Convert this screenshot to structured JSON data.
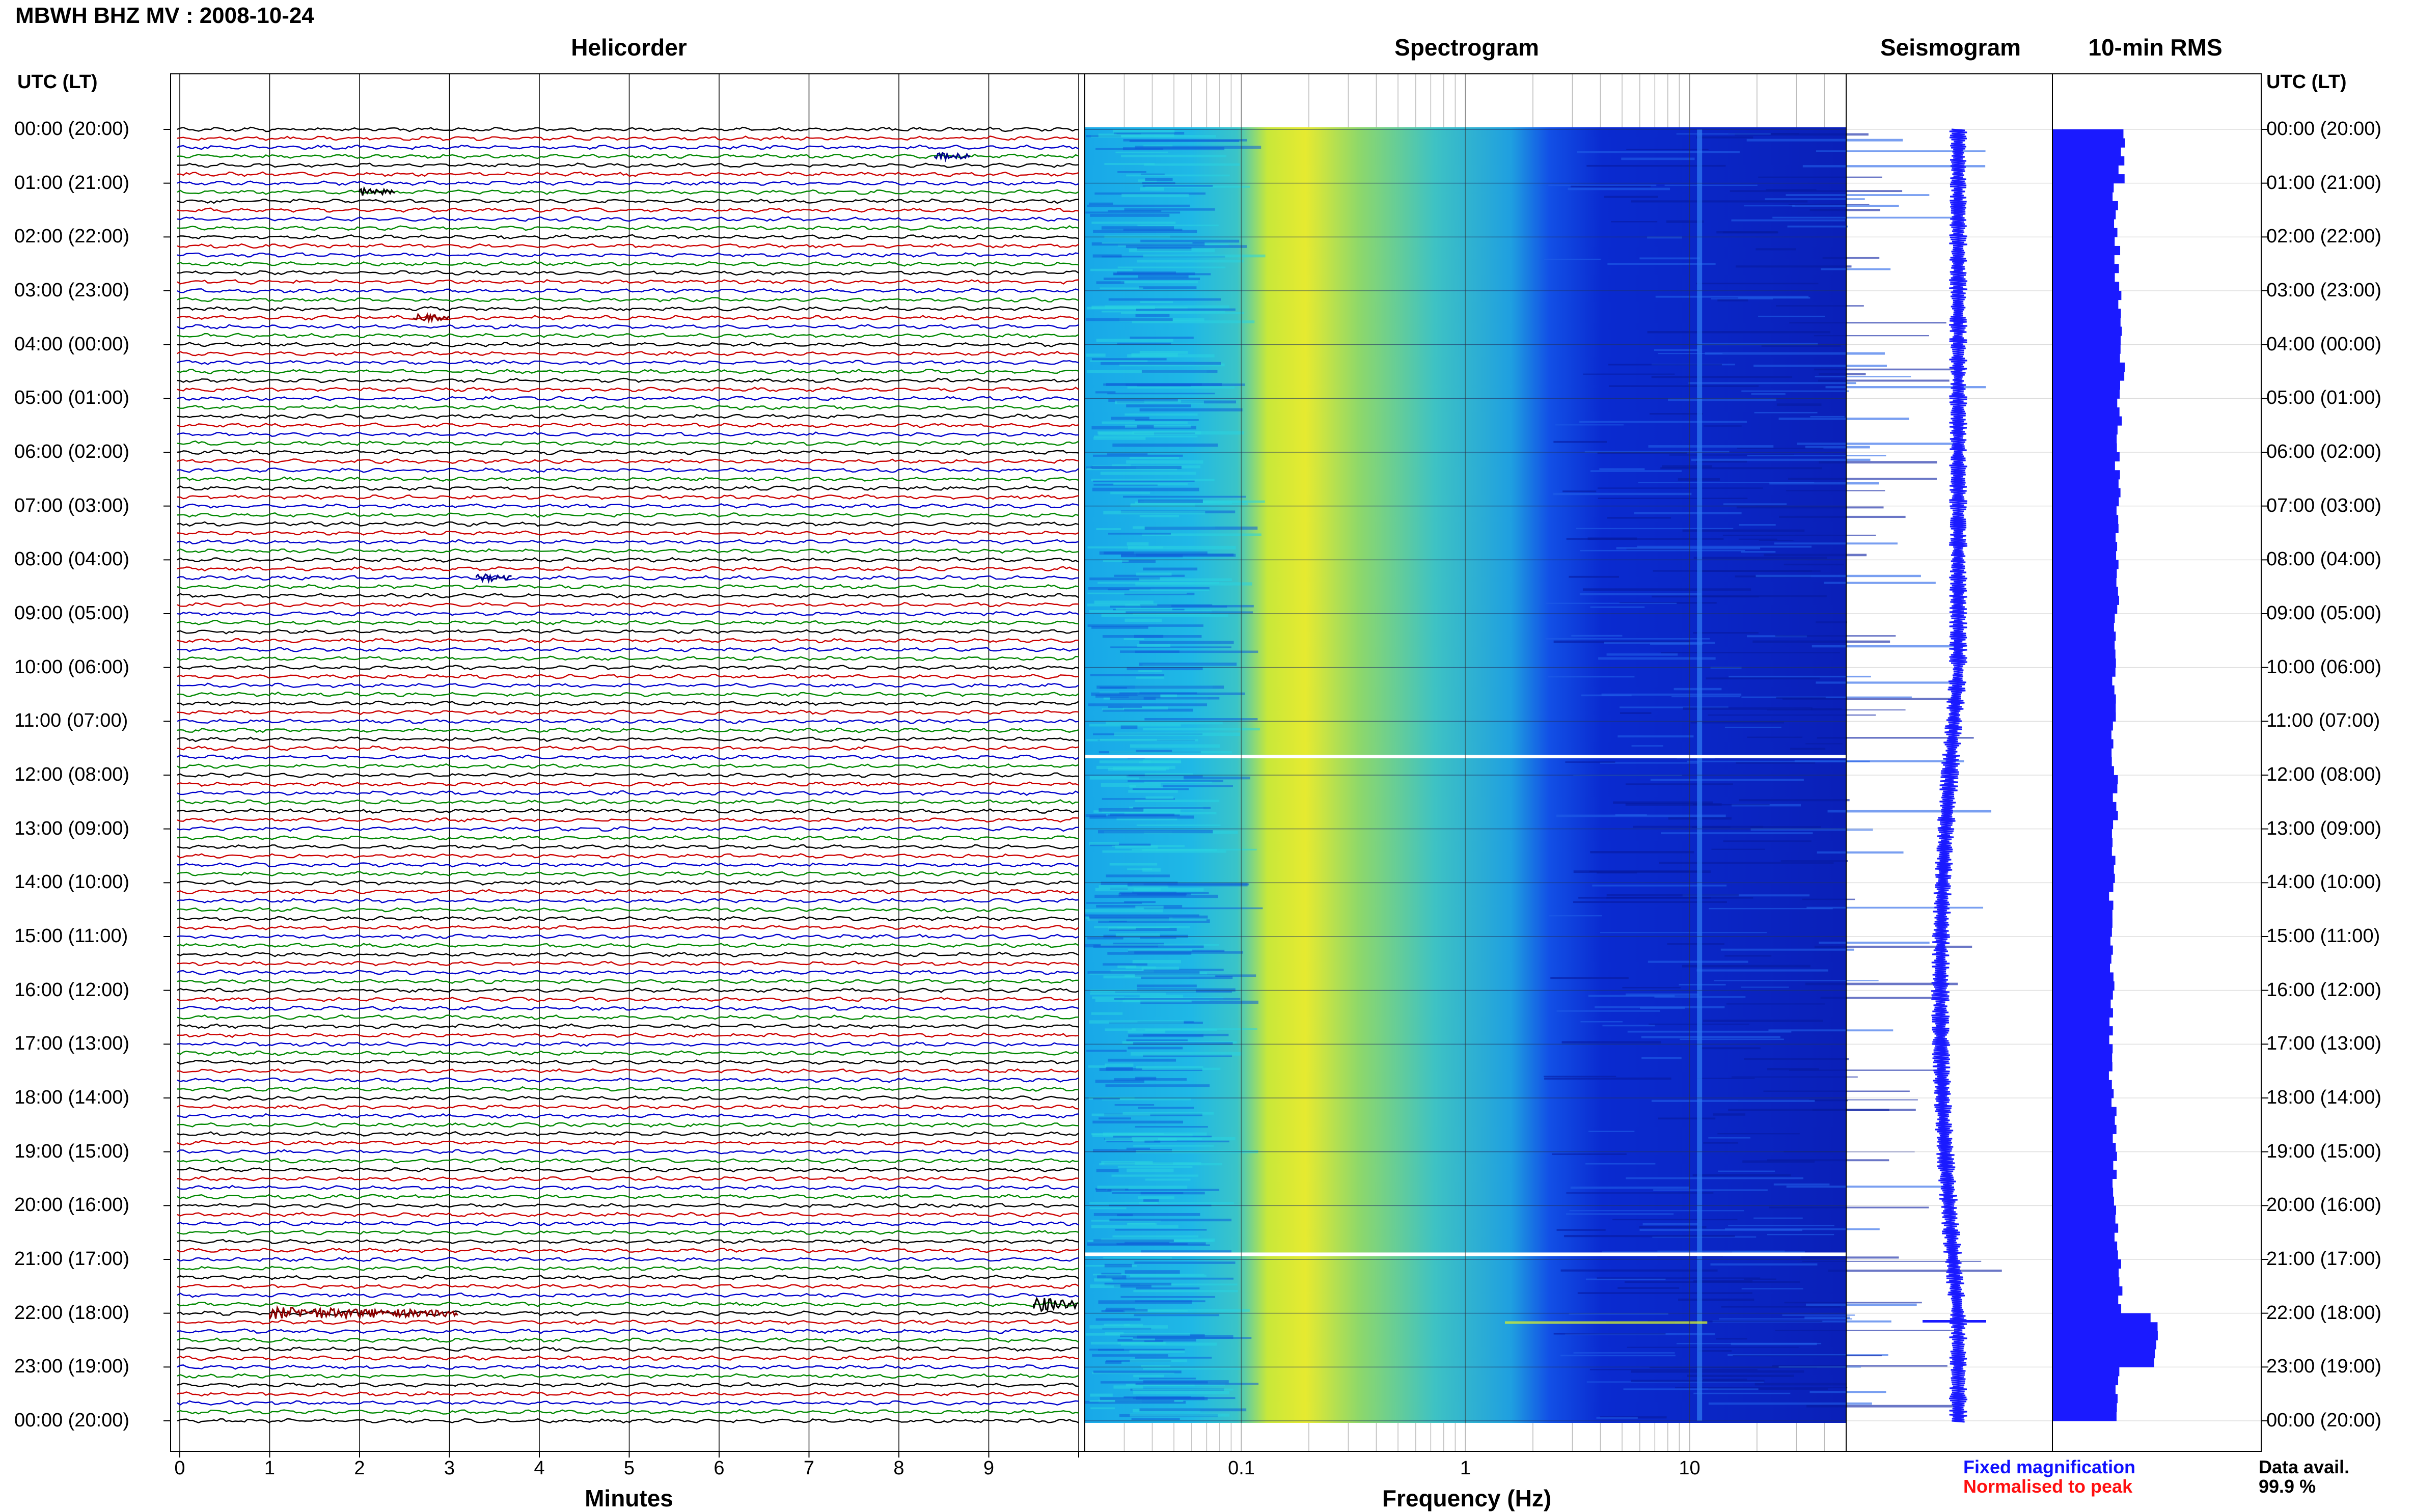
{
  "header": {
    "title": "MBWH BHZ MV : 2008-10-24"
  },
  "panels": {
    "helicorder": "Helicorder",
    "spectrogram": "Spectrogram",
    "seismogram": "Seismogram",
    "rms": "10-min RMS"
  },
  "axis_header_left": "UTC (LT)",
  "axis_header_right": "UTC (LT)",
  "time_labels": [
    "00:00 (20:00)",
    "01:00 (21:00)",
    "02:00 (22:00)",
    "03:00 (23:00)",
    "04:00 (00:00)",
    "05:00 (01:00)",
    "06:00 (02:00)",
    "07:00 (03:00)",
    "08:00 (04:00)",
    "09:00 (05:00)",
    "10:00 (06:00)",
    "11:00 (07:00)",
    "12:00 (08:00)",
    "13:00 (09:00)",
    "14:00 (10:00)",
    "15:00 (11:00)",
    "16:00 (12:00)",
    "17:00 (13:00)",
    "18:00 (14:00)",
    "19:00 (15:00)",
    "20:00 (16:00)",
    "21:00 (17:00)",
    "22:00 (18:00)",
    "23:00 (19:00)",
    "00:00 (20:00)"
  ],
  "helicorder_xticks": [
    "0",
    "1",
    "2",
    "3",
    "4",
    "5",
    "6",
    "7",
    "8",
    "9"
  ],
  "helicorder_xlabel": "Minutes",
  "spectrogram_xticks": [
    "0.1",
    "1",
    "10"
  ],
  "spectrogram_xlabel": "Frequency (Hz)",
  "legend": {
    "fixed": "Fixed magnification",
    "normalised": "Normalised to peak",
    "fixed_color": "#1010ff",
    "normalised_color": "#ff1010"
  },
  "availability": {
    "label": "Data avail.",
    "value": "99.9 %"
  },
  "colors": {
    "trace_cycle": [
      "#000000",
      "#cc0000",
      "#0000cc",
      "#008800"
    ],
    "rms_bar": "#1a1aff",
    "seismogram_trace": "#1a1aff"
  },
  "chart_data": {
    "type": "heatmap",
    "title": "MBWH BHZ MV : 2008-10-24",
    "rows_per_hour": 6,
    "hours": 24,
    "helicorder": {
      "x_unit": "minutes",
      "xlim": [
        0,
        10
      ],
      "events": [
        {
          "hour": 0,
          "row": 3,
          "minute": 8.4,
          "color": "blue"
        },
        {
          "hour": 1,
          "row": 1,
          "minute": 2.0,
          "color": "black"
        },
        {
          "hour": 3,
          "row": 3,
          "minute": 2.6,
          "color": "red"
        },
        {
          "hour": 8,
          "row": 2,
          "minute": 3.3,
          "color": "blue"
        },
        {
          "hour": 21,
          "row": 5,
          "minute": 9.5,
          "color": "black"
        },
        {
          "hour": 22,
          "row": 0,
          "minute": 1.0,
          "color": "red"
        }
      ]
    },
    "spectrogram": {
      "x_scale": "log",
      "xlim": [
        0.02,
        50
      ],
      "gaps_hours": [
        11.65,
        20.9
      ],
      "peak_band_hz": 0.2
    },
    "rms_10min": {
      "unit": "relative",
      "values_by_hour": [
        0.34,
        0.31,
        0.32,
        0.33,
        0.34,
        0.33,
        0.32,
        0.31,
        0.32,
        0.31,
        0.3,
        0.3,
        0.31,
        0.3,
        0.29,
        0.29,
        0.29,
        0.29,
        0.3,
        0.31,
        0.32,
        0.33,
        0.5,
        0.32
      ]
    }
  }
}
